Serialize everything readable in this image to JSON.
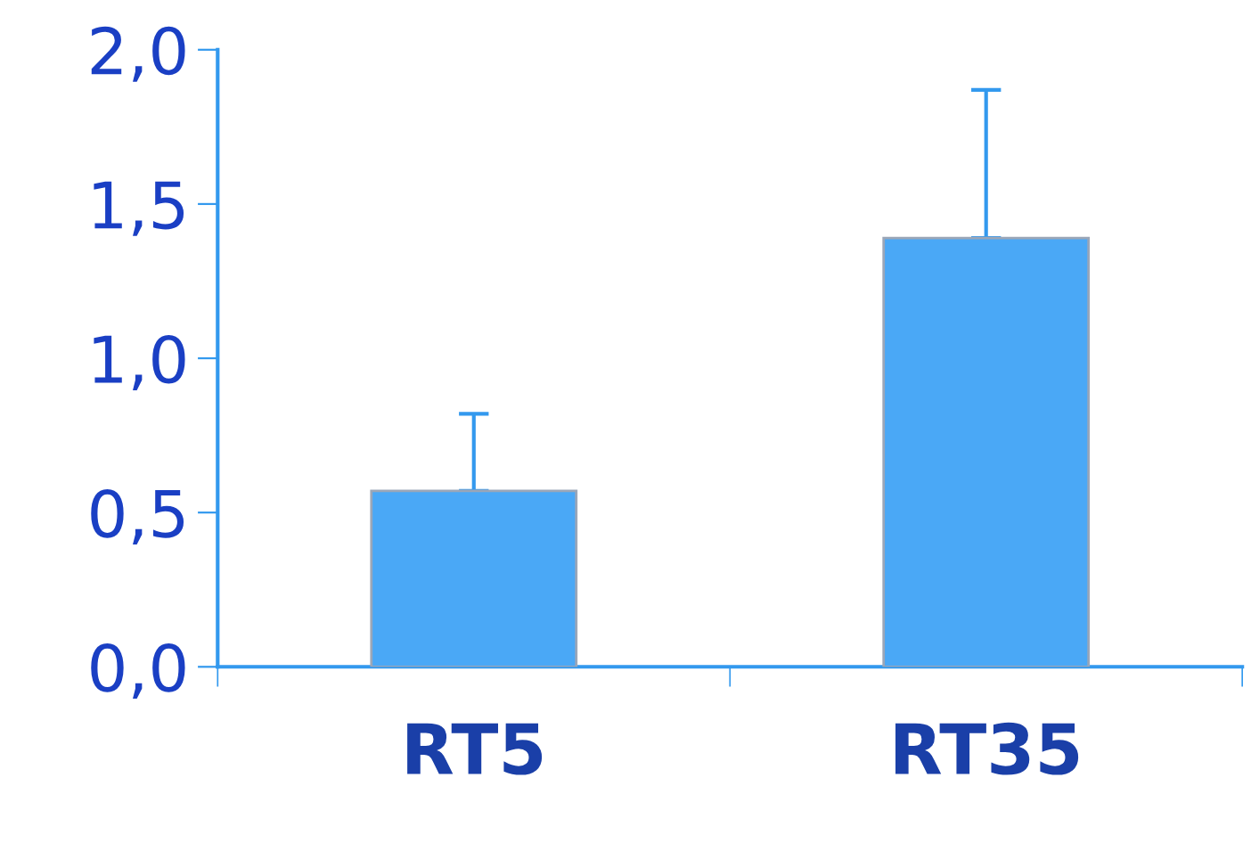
{
  "chart_data": {
    "type": "bar",
    "categories": [
      "RT5",
      "RT35"
    ],
    "values": [
      0.57,
      1.39
    ],
    "errors": [
      [
        0.57,
        0.82
      ],
      [
        1.39,
        1.87
      ]
    ],
    "color": "#4aa8f6",
    "ylim": [
      0,
      2.0
    ],
    "yticks": [
      {
        "value": 0,
        "label": "0,0"
      },
      {
        "value": 0.5,
        "label": "0,5"
      },
      {
        "value": 1.0,
        "label": "1,0"
      },
      {
        "value": 1.5,
        "label": "1,5"
      },
      {
        "value": 2.0,
        "label": "2,0"
      }
    ],
    "grid": false
  }
}
